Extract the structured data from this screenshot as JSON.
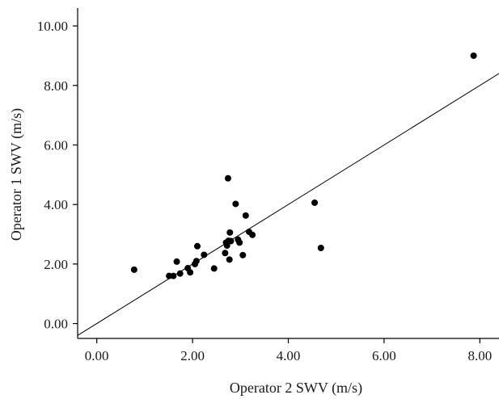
{
  "chart_data": {
    "type": "scatter",
    "title": "",
    "xlabel": "Operator 2 SWV (m/s)",
    "ylabel": "Operator 1 SWV (m/s)",
    "xlim": [
      -0.4,
      8.4
    ],
    "ylim": [
      -0.5,
      10.6
    ],
    "x_ticks": [
      0,
      2,
      4,
      6,
      8
    ],
    "y_ticks": [
      0,
      2,
      4,
      6,
      8,
      10
    ],
    "x_tick_labels": [
      "0.00",
      "2.00",
      "4.00",
      "6.00",
      "8.00"
    ],
    "y_tick_labels": [
      "0.00",
      "2.00",
      "4.00",
      "6.00",
      "8.00",
      "10.00"
    ],
    "grid": false,
    "reference_line": "identity (y = x)",
    "series": [
      {
        "points": [
          {
            "x": 0.78,
            "y": 1.81
          },
          {
            "x": 1.51,
            "y": 1.6
          },
          {
            "x": 1.6,
            "y": 1.6
          },
          {
            "x": 1.67,
            "y": 2.08
          },
          {
            "x": 1.74,
            "y": 1.68
          },
          {
            "x": 1.9,
            "y": 1.86
          },
          {
            "x": 1.95,
            "y": 1.72
          },
          {
            "x": 2.05,
            "y": 2.0
          },
          {
            "x": 2.08,
            "y": 2.1
          },
          {
            "x": 2.1,
            "y": 2.6
          },
          {
            "x": 2.24,
            "y": 2.31
          },
          {
            "x": 2.45,
            "y": 1.85
          },
          {
            "x": 2.68,
            "y": 2.37
          },
          {
            "x": 2.7,
            "y": 2.72
          },
          {
            "x": 2.72,
            "y": 2.62
          },
          {
            "x": 2.74,
            "y": 4.88
          },
          {
            "x": 2.75,
            "y": 2.78
          },
          {
            "x": 2.77,
            "y": 2.15
          },
          {
            "x": 2.78,
            "y": 3.06
          },
          {
            "x": 2.8,
            "y": 2.77
          },
          {
            "x": 2.9,
            "y": 4.02
          },
          {
            "x": 2.95,
            "y": 2.82
          },
          {
            "x": 2.98,
            "y": 2.72
          },
          {
            "x": 3.05,
            "y": 2.3
          },
          {
            "x": 3.11,
            "y": 3.63
          },
          {
            "x": 3.18,
            "y": 3.08
          },
          {
            "x": 3.25,
            "y": 2.98
          },
          {
            "x": 4.55,
            "y": 4.06
          },
          {
            "x": 4.68,
            "y": 2.54
          },
          {
            "x": 7.87,
            "y": 9.0
          }
        ]
      }
    ]
  }
}
